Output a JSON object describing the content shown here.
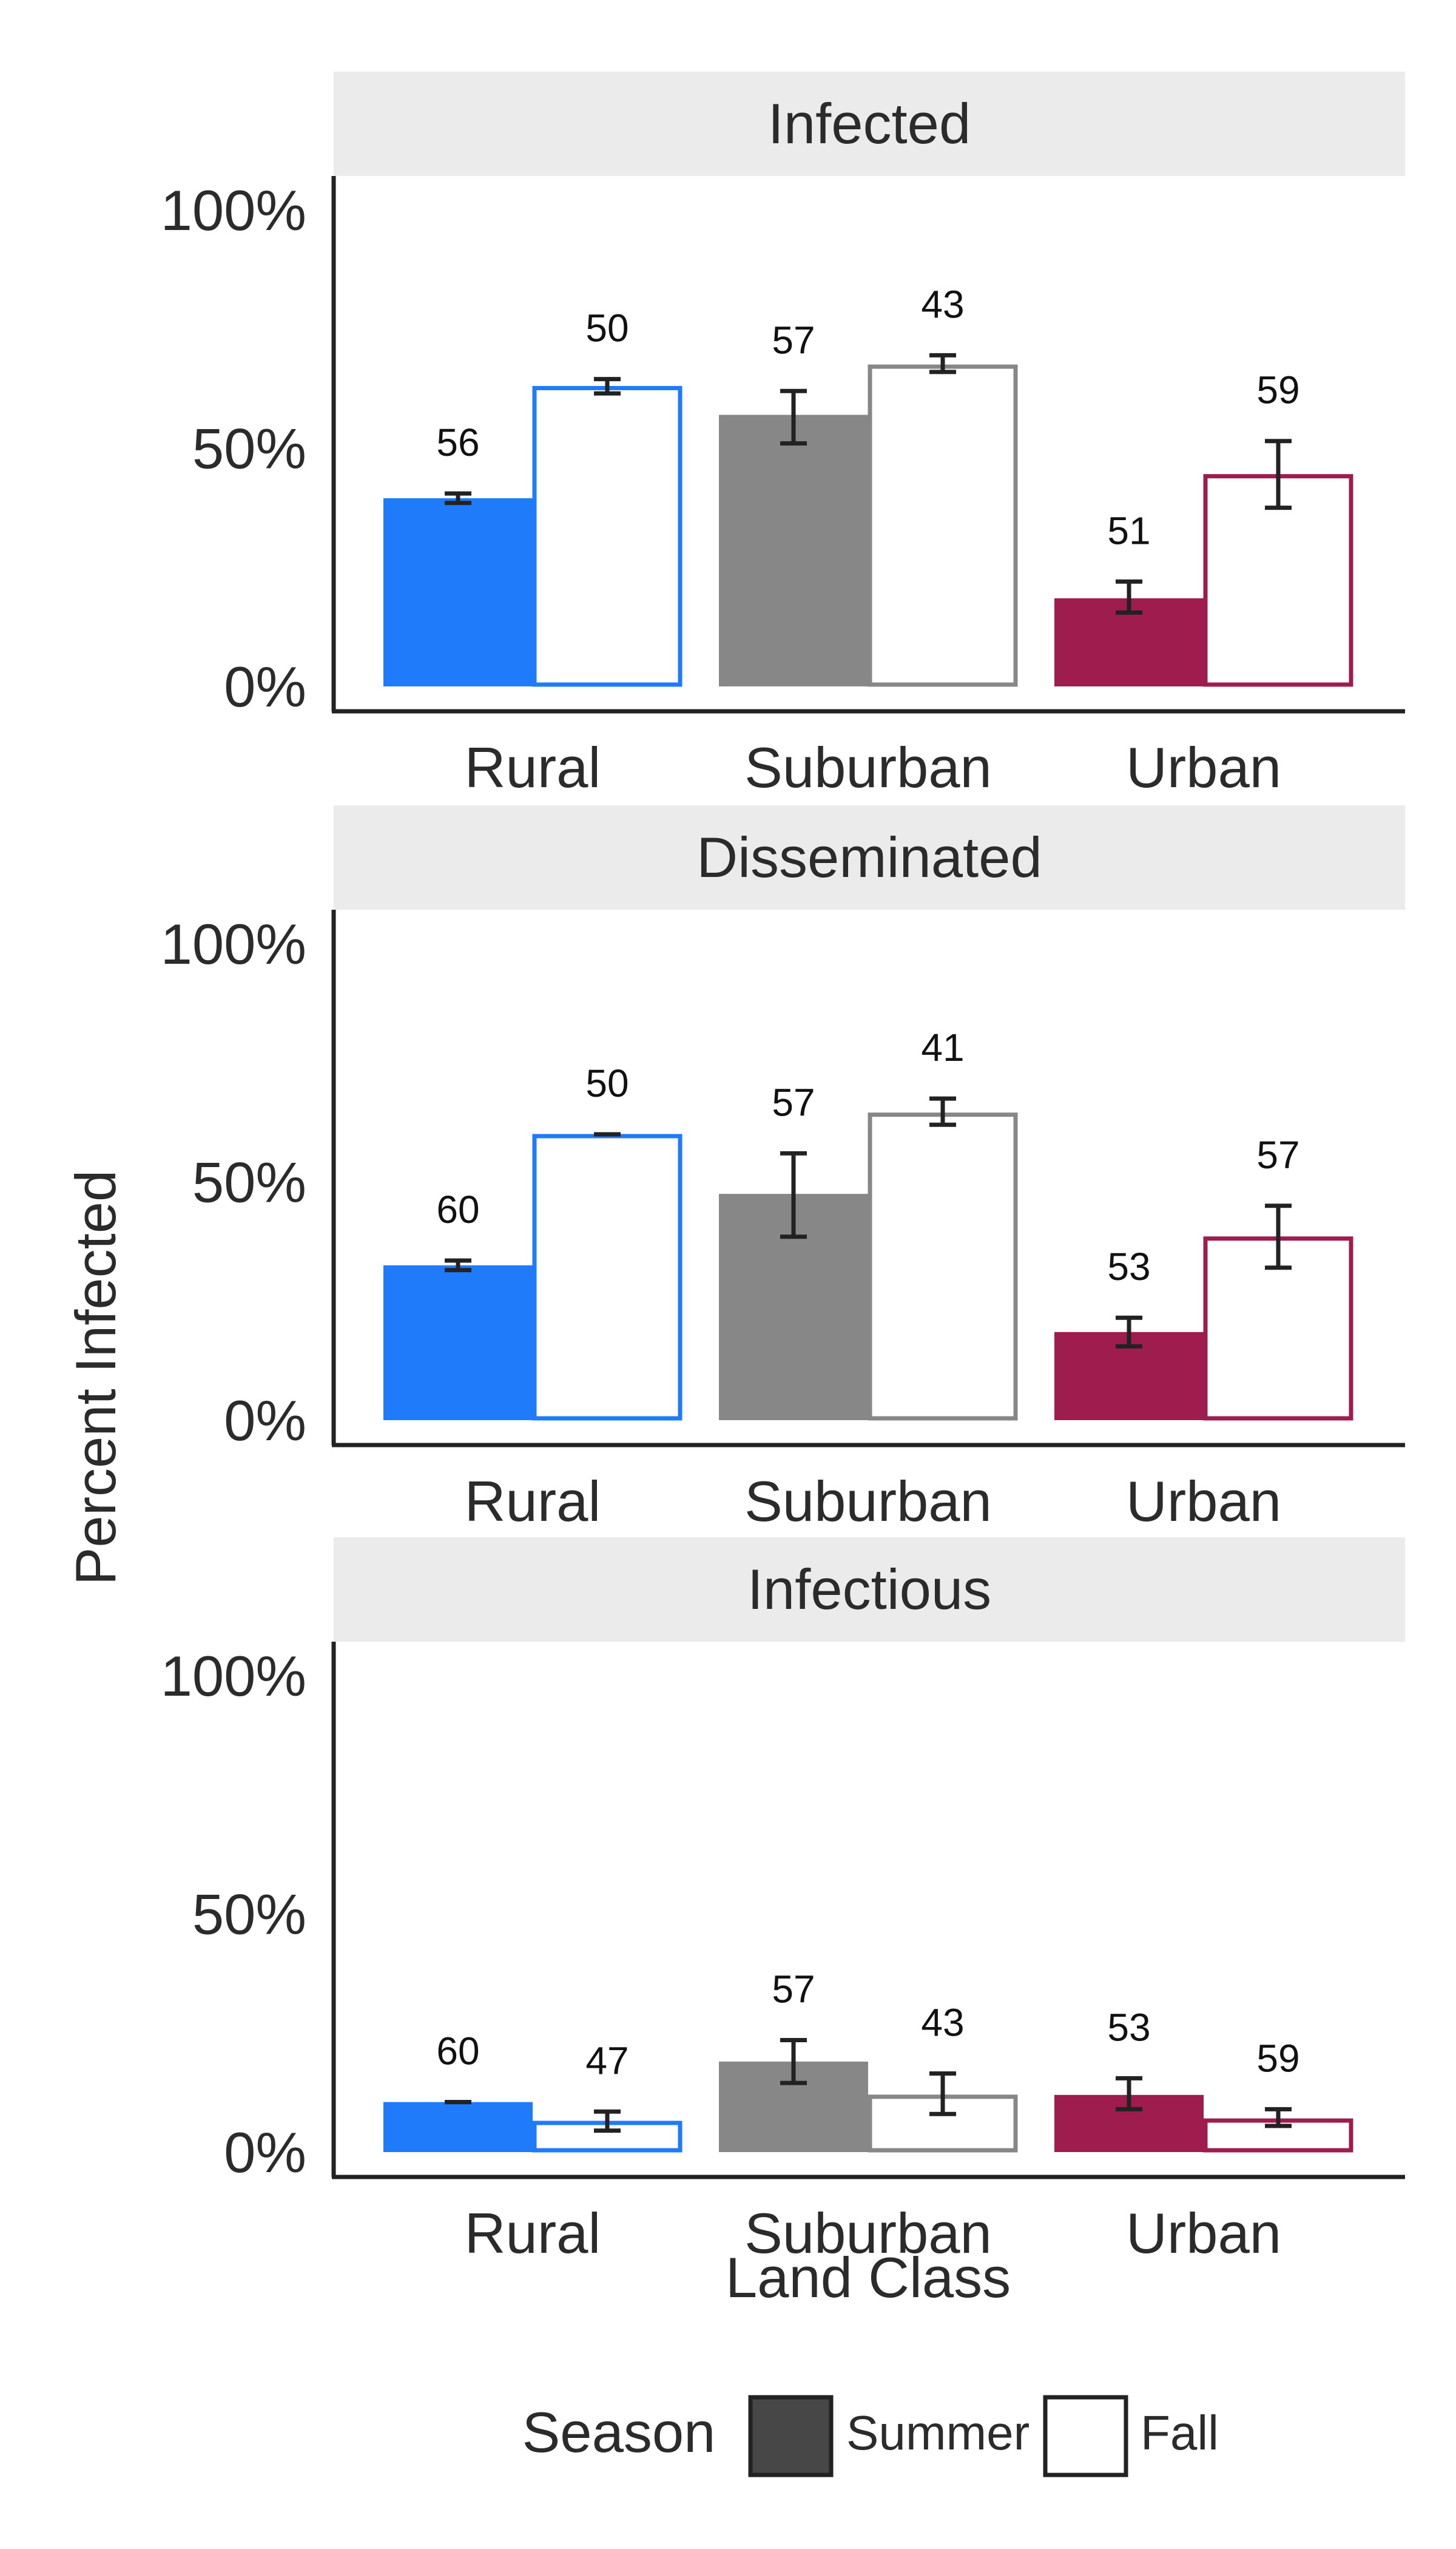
{
  "chart_data": {
    "type": "bar",
    "ylabel": "Percent Infected",
    "xlabel": "Land Class",
    "categories": [
      "Rural",
      "Suburban",
      "Urban"
    ],
    "yticks": [
      "0%",
      "50%",
      "100%"
    ],
    "ylim": [
      0,
      100
    ],
    "legend": {
      "title": "Season",
      "position": "bottom",
      "entries": [
        {
          "label": "Summer",
          "style": "filled"
        },
        {
          "label": "Fall",
          "style": "outline"
        }
      ]
    },
    "category_colors": {
      "Rural": "#1f7bfa",
      "Suburban": "#878787",
      "Urban": "#9e1c4e"
    },
    "legend_fill_color": "#474747",
    "strip_background": "#ebebeb",
    "panels": [
      {
        "title": "Infected",
        "bars": [
          {
            "category": "Rural",
            "season": "Summer",
            "value": 39.5,
            "err_low": 38.5,
            "err_high": 40.5,
            "n": "56"
          },
          {
            "category": "Rural",
            "season": "Fall",
            "value": 63,
            "err_low": 61.5,
            "err_high": 64.5,
            "n": "50"
          },
          {
            "category": "Suburban",
            "season": "Summer",
            "value": 57,
            "err_low": 51,
            "err_high": 62,
            "n": "57"
          },
          {
            "category": "Suburban",
            "season": "Fall",
            "value": 67.5,
            "err_low": 66,
            "err_high": 69.5,
            "n": "43"
          },
          {
            "category": "Urban",
            "season": "Summer",
            "value": 18.5,
            "err_low": 15.5,
            "err_high": 22,
            "n": "51"
          },
          {
            "category": "Urban",
            "season": "Fall",
            "value": 44.5,
            "err_low": 37.5,
            "err_high": 51.5,
            "n": "59"
          }
        ]
      },
      {
        "title": "Disseminated",
        "bars": [
          {
            "category": "Rural",
            "season": "Summer",
            "value": 32.5,
            "err_low": 31.5,
            "err_high": 33.5,
            "n": "60"
          },
          {
            "category": "Rural",
            "season": "Fall",
            "value": 60,
            "err_low": 60,
            "err_high": 60,
            "n": "50"
          },
          {
            "category": "Suburban",
            "season": "Summer",
            "value": 47.5,
            "err_low": 38.5,
            "err_high": 56,
            "n": "57"
          },
          {
            "category": "Suburban",
            "season": "Fall",
            "value": 64.5,
            "err_low": 62,
            "err_high": 67.5,
            "n": "41"
          },
          {
            "category": "Urban",
            "season": "Summer",
            "value": 18.5,
            "err_low": 15.5,
            "err_high": 21.5,
            "n": "53"
          },
          {
            "category": "Urban",
            "season": "Fall",
            "value": 38.5,
            "err_low": 32,
            "err_high": 45,
            "n": "57"
          }
        ]
      },
      {
        "title": "Infectious",
        "bars": [
          {
            "category": "Rural",
            "season": "Summer",
            "value": 10.5,
            "err_low": 10.5,
            "err_high": 10.5,
            "n": "60"
          },
          {
            "category": "Rural",
            "season": "Fall",
            "value": 6.5,
            "err_low": 4.5,
            "err_high": 8.5,
            "n": "47"
          },
          {
            "category": "Suburban",
            "season": "Summer",
            "value": 19,
            "err_low": 14.5,
            "err_high": 23.5,
            "n": "57"
          },
          {
            "category": "Suburban",
            "season": "Fall",
            "value": 12,
            "err_low": 8,
            "err_high": 16.5,
            "n": "43"
          },
          {
            "category": "Urban",
            "season": "Summer",
            "value": 12,
            "err_low": 9,
            "err_high": 15.5,
            "n": "53"
          },
          {
            "category": "Urban",
            "season": "Fall",
            "value": 7,
            "err_low": 5.5,
            "err_high": 9,
            "n": "59"
          }
        ]
      }
    ]
  }
}
